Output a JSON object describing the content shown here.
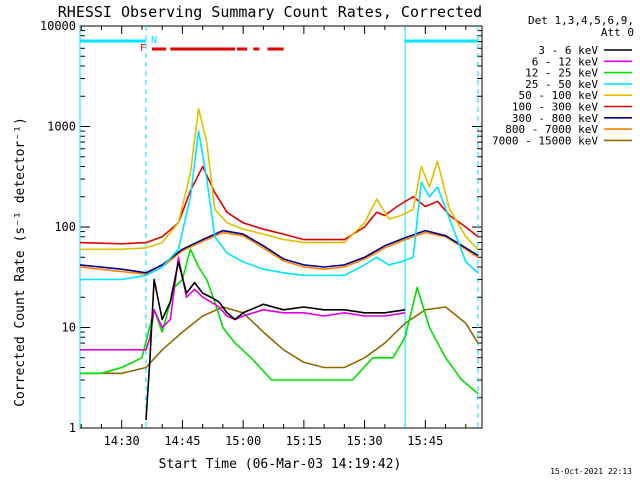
{
  "chart_data": {
    "type": "line",
    "title": "RHESSI Observing Summary Count Rates, Corrected",
    "xlabel": "Start Time (06-Mar-03 14:19:42)",
    "ylabel": "Corrected Count Rate (s⁻¹ detector⁻¹)",
    "y_scale": "log",
    "ylim": [
      1,
      10000
    ],
    "xlim": [
      "14:19:42",
      "15:59:00"
    ],
    "x_ticks": [
      "14:30",
      "14:45",
      "15:00",
      "15:15",
      "15:30",
      "15:45"
    ],
    "y_ticks": [
      "1",
      "10",
      "100",
      "1000",
      "10000"
    ],
    "legend_header": [
      "Det 1,3,4,5,6,9,",
      "Att 0"
    ],
    "legend_position": "right",
    "timestamp": "15-Oct-2021 22:13",
    "grid": false,
    "background": "#ffffff",
    "axis_color": "#000000",
    "flags": {
      "night_label": "N",
      "flare_label": "F",
      "night_color": "#00e5ff",
      "flare_color": "#e00000",
      "night_intervals": [
        [
          "14:19:42",
          "14:36:00"
        ],
        [
          "15:40:00",
          "15:58:00"
        ]
      ],
      "flare_intervals": [
        [
          "14:37:30",
          "14:41:00"
        ],
        [
          "14:42:00",
          "14:58:00"
        ],
        [
          "14:58:30",
          "15:01:00"
        ],
        [
          "15:02:30",
          "15:04:00"
        ],
        [
          "15:06:00",
          "15:10:00"
        ]
      ],
      "vertical_lines": [
        {
          "t": "14:19:42",
          "style": "solid"
        },
        {
          "t": "14:36:00",
          "style": "dashed"
        },
        {
          "t": "15:40:00",
          "style": "solid"
        },
        {
          "t": "15:58:00",
          "style": "dashed"
        }
      ]
    },
    "series": [
      {
        "name": "3 - 6 keV",
        "color": "#000000",
        "x": [
          "14:36:00",
          "14:37:00",
          "14:38:00",
          "14:40:00",
          "14:42:00",
          "14:44:00",
          "14:46:00",
          "14:48:00",
          "14:50:00",
          "14:52:00",
          "14:54:00",
          "14:56:00",
          "14:58:00",
          "15:00:00",
          "15:05:00",
          "15:10:00",
          "15:15:00",
          "15:20:00",
          "15:25:00",
          "15:30:00",
          "15:35:00",
          "15:40:00"
        ],
        "values": [
          1.2,
          5,
          30,
          12,
          18,
          45,
          22,
          28,
          22,
          20,
          18,
          14,
          12,
          14,
          17,
          15,
          16,
          15,
          15,
          14,
          14,
          15
        ]
      },
      {
        "name": "6 - 12 keV",
        "color": "#e000e0",
        "x": [
          "14:19:42",
          "14:30:00",
          "14:36:00",
          "14:37:00",
          "14:38:00",
          "14:40:00",
          "14:42:00",
          "14:44:00",
          "14:46:00",
          "14:48:00",
          "14:50:00",
          "14:52:00",
          "14:54:00",
          "14:56:00",
          "14:58:00",
          "15:00:00",
          "15:05:00",
          "15:10:00",
          "15:15:00",
          "15:20:00",
          "15:25:00",
          "15:30:00",
          "15:35:00",
          "15:40:00"
        ],
        "values": [
          6,
          6,
          6,
          8,
          15,
          10,
          12,
          50,
          20,
          24,
          20,
          18,
          16,
          13,
          12,
          13,
          15,
          14,
          14,
          13,
          14,
          13,
          13,
          14
        ]
      },
      {
        "name": "12 - 25 keV",
        "color": "#00e000",
        "x": [
          "14:19:42",
          "14:25:00",
          "14:30:00",
          "14:35:00",
          "14:38:00",
          "14:40:00",
          "14:43:00",
          "14:45:00",
          "14:47:00",
          "14:49:00",
          "14:51:00",
          "14:53:00",
          "14:55:00",
          "14:58:00",
          "15:02:00",
          "15:07:00",
          "15:12:00",
          "15:17:00",
          "15:22:00",
          "15:27:00",
          "15:32:00",
          "15:37:00",
          "15:40:00",
          "15:43:00",
          "15:46:00",
          "15:50:00",
          "15:54:00",
          "15:58:00"
        ],
        "values": [
          3.5,
          3.5,
          4,
          5,
          15,
          9,
          25,
          30,
          60,
          40,
          30,
          18,
          10,
          7,
          5,
          3,
          3,
          3,
          3,
          3,
          5,
          5,
          8,
          25,
          10,
          5,
          3,
          2.2
        ]
      },
      {
        "name": "25 - 50 keV",
        "color": "#00e5ff",
        "x": [
          "14:19:42",
          "14:30:00",
          "14:36:00",
          "14:40:00",
          "14:44:00",
          "14:47:00",
          "14:49:00",
          "14:51:00",
          "14:53:00",
          "14:56:00",
          "15:00:00",
          "15:05:00",
          "15:10:00",
          "15:15:00",
          "15:20:00",
          "15:25:00",
          "15:30:00",
          "15:33:00",
          "15:36:00",
          "15:39:00",
          "15:42:00",
          "15:44:00",
          "15:46:00",
          "15:48:00",
          "15:51:00",
          "15:55:00",
          "15:58:00"
        ],
        "values": [
          30,
          30,
          33,
          40,
          60,
          200,
          900,
          300,
          80,
          55,
          45,
          38,
          35,
          33,
          33,
          33,
          42,
          50,
          42,
          45,
          50,
          280,
          200,
          250,
          120,
          45,
          35
        ]
      },
      {
        "name": "50 - 100 keV",
        "color": "#e0c000",
        "x": [
          "14:19:42",
          "14:30:00",
          "14:36:00",
          "14:40:00",
          "14:44:00",
          "14:47:00",
          "14:49:00",
          "14:51:00",
          "14:53:00",
          "14:56:00",
          "15:00:00",
          "15:05:00",
          "15:10:00",
          "15:15:00",
          "15:20:00",
          "15:25:00",
          "15:30:00",
          "15:33:00",
          "15:36:00",
          "15:39:00",
          "15:42:00",
          "15:44:00",
          "15:46:00",
          "15:48:00",
          "15:51:00",
          "15:55:00",
          "15:58:00"
        ],
        "values": [
          60,
          60,
          62,
          70,
          110,
          350,
          1500,
          700,
          150,
          110,
          95,
          85,
          75,
          70,
          70,
          70,
          110,
          190,
          120,
          130,
          150,
          400,
          250,
          450,
          150,
          80,
          60
        ]
      },
      {
        "name": "100 - 300 keV",
        "color": "#e00000",
        "x": [
          "14:19:42",
          "14:30:00",
          "14:36:00",
          "14:40:00",
          "14:44:00",
          "14:47:00",
          "14:50:00",
          "14:53:00",
          "14:56:00",
          "15:00:00",
          "15:05:00",
          "15:10:00",
          "15:15:00",
          "15:20:00",
          "15:25:00",
          "15:30:00",
          "15:33:00",
          "15:35:00",
          "15:38:00",
          "15:42:00",
          "15:45:00",
          "15:48:00",
          "15:51:00",
          "15:55:00",
          "15:58:00"
        ],
        "values": [
          70,
          68,
          70,
          80,
          110,
          230,
          400,
          220,
          140,
          110,
          95,
          85,
          75,
          75,
          75,
          100,
          140,
          130,
          160,
          200,
          160,
          180,
          130,
          100,
          80
        ]
      },
      {
        "name": "300 - 800 keV",
        "color": "#00008b",
        "x": [
          "14:19:42",
          "14:30:00",
          "14:36:00",
          "14:40:00",
          "14:45:00",
          "14:50:00",
          "14:55:00",
          "15:00:00",
          "15:05:00",
          "15:10:00",
          "15:15:00",
          "15:20:00",
          "15:25:00",
          "15:30:00",
          "15:35:00",
          "15:40:00",
          "15:45:00",
          "15:50:00",
          "15:55:00",
          "15:58:00"
        ],
        "values": [
          42,
          38,
          35,
          42,
          60,
          75,
          92,
          85,
          65,
          48,
          42,
          40,
          42,
          50,
          65,
          78,
          92,
          82,
          62,
          52
        ]
      },
      {
        "name": "800 - 7000 keV",
        "color": "#ff8000",
        "x": [
          "14:19:42",
          "14:30:00",
          "14:36:00",
          "14:40:00",
          "14:45:00",
          "14:50:00",
          "14:55:00",
          "15:00:00",
          "15:05:00",
          "15:10:00",
          "15:15:00",
          "15:20:00",
          "15:25:00",
          "15:30:00",
          "15:35:00",
          "15:40:00",
          "15:45:00",
          "15:50:00",
          "15:55:00",
          "15:58:00"
        ],
        "values": [
          40,
          36,
          34,
          40,
          58,
          72,
          88,
          82,
          62,
          46,
          40,
          38,
          40,
          48,
          62,
          75,
          88,
          80,
          60,
          50
        ]
      },
      {
        "name": "7000 - 15000 keV",
        "color": "#8b6b00",
        "x": [
          "14:19:42",
          "14:25:00",
          "14:30:00",
          "14:36:00",
          "14:40:00",
          "14:45:00",
          "14:50:00",
          "14:55:00",
          "15:00:00",
          "15:05:00",
          "15:10:00",
          "15:15:00",
          "15:20:00",
          "15:25:00",
          "15:30:00",
          "15:35:00",
          "15:40:00",
          "15:45:00",
          "15:50:00",
          "15:55:00",
          "15:58:00"
        ],
        "values": [
          3.5,
          3.5,
          3.5,
          4,
          6,
          9,
          13,
          16,
          14,
          9,
          6,
          4.5,
          4,
          4,
          5,
          7,
          11,
          15,
          16,
          11,
          7
        ]
      }
    ]
  }
}
